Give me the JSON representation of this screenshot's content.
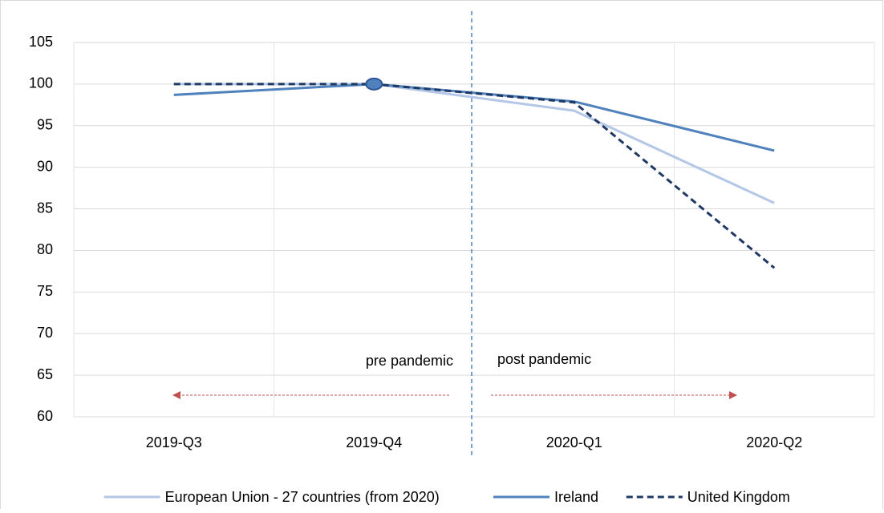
{
  "chart_data": {
    "type": "line",
    "categories": [
      "2019-Q3",
      "2019-Q4",
      "2020-Q1",
      "2020-Q2"
    ],
    "series": [
      {
        "name": "European Union - 27 countries (from 2020)",
        "color": "#b4c7e7",
        "values": [
          100,
          100,
          96.8,
          85.7
        ]
      },
      {
        "name": "Ireland",
        "color": "#4f81bd",
        "values": [
          98.7,
          100,
          97.9,
          92
        ]
      },
      {
        "name": "United Kingdom",
        "color": "#1f3864",
        "dash": true,
        "values": [
          100,
          100,
          97.8,
          77.9
        ]
      }
    ],
    "ylim": [
      60,
      105
    ],
    "yticks": [
      60,
      65,
      70,
      75,
      80,
      85,
      90,
      95,
      100,
      105
    ],
    "grid": true,
    "annotations": [
      "pre pandemic",
      "post pandemic"
    ],
    "legend": "bottom"
  }
}
